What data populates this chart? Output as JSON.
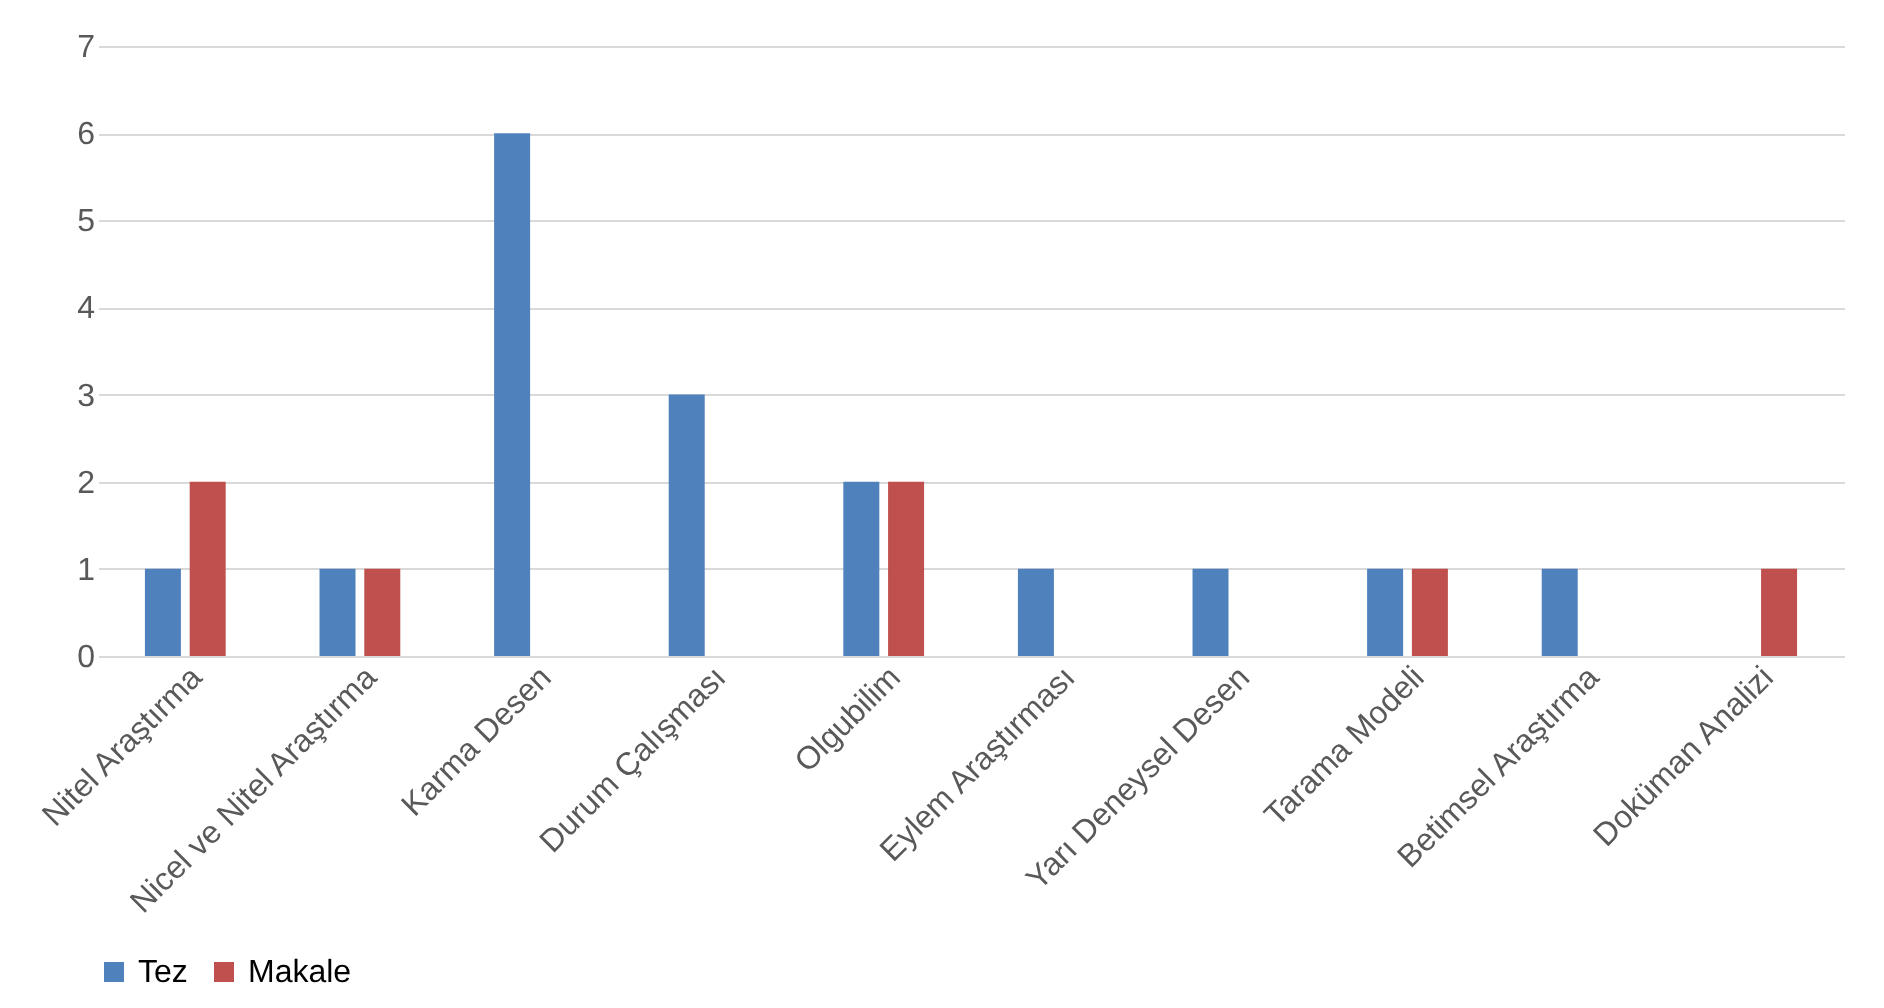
{
  "chart_data": {
    "type": "bar",
    "categories": [
      "Nitel Araştırma",
      "Nicel ve Nitel Araştırma",
      "Karma Desen",
      "Durum Çalışması",
      "Olgubilim",
      "Eylem Araştırması",
      "Yarı Deneysel Desen",
      "Tarama Modeli",
      "Betimsel Araştırma",
      "Doküman Analizi"
    ],
    "series": [
      {
        "name": "Tez",
        "color": "#4f81bd",
        "values": [
          1,
          1,
          6,
          3,
          2,
          1,
          1,
          1,
          1,
          0
        ]
      },
      {
        "name": "Makale",
        "color": "#c0504d",
        "values": [
          2,
          1,
          0,
          0,
          2,
          0,
          0,
          1,
          0,
          1
        ]
      }
    ],
    "ylim": [
      0,
      7
    ],
    "yticks": [
      0,
      1,
      2,
      3,
      4,
      5,
      6,
      7
    ],
    "grid": "y",
    "legend": "bottom"
  }
}
